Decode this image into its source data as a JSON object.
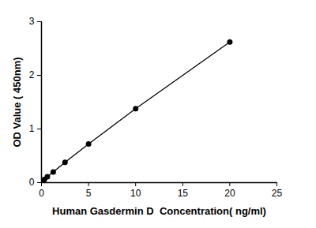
{
  "chart_data": {
    "type": "line",
    "xlabel": "Human Gasdermin D  Concentration( ng/ml)",
    "ylabel": "OD Value ( 450nm)",
    "x": [
      0,
      0.3125,
      0.625,
      1.25,
      2.5,
      5,
      10,
      20
    ],
    "values": [
      0.03,
      0.06,
      0.11,
      0.2,
      0.38,
      0.72,
      1.38,
      2.62
    ],
    "color": "#000000",
    "marker": "circle",
    "xlim": [
      0,
      25
    ],
    "xticks": [
      0,
      5,
      10,
      15,
      20,
      25
    ],
    "ylim": [
      0,
      3
    ],
    "yticks": [
      0,
      1,
      2,
      3
    ],
    "grid": false
  }
}
